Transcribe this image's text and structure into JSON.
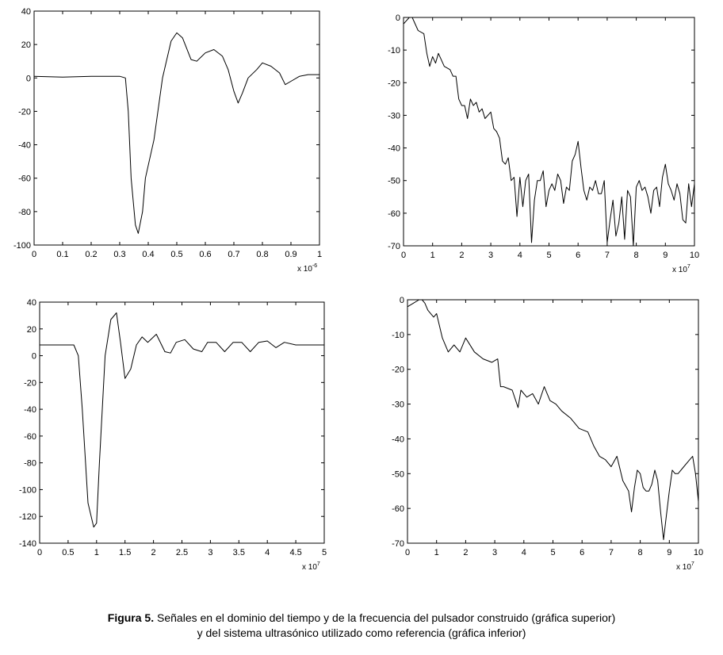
{
  "caption": {
    "label": "Figura 5.",
    "line1": " Señales en el dominio del tiempo y de la frecuencia del pulsador construido (gráfica superior)",
    "line2": "y del sistema ultrasónico utilizado como referencia (gráfica inferior)"
  },
  "chart_data": [
    {
      "id": "top-left",
      "type": "line",
      "title": "",
      "xlabel": "",
      "ylabel": "",
      "xlim": [
        0,
        1
      ],
      "ylim": [
        -100,
        40
      ],
      "xticks": [
        "0",
        "0.1",
        "0.2",
        "0.3",
        "0.4",
        "0.5",
        "0.6",
        "0.7",
        "0.8",
        "0.9",
        "1"
      ],
      "yticks": [
        "40",
        "20",
        "0",
        "-20",
        "-40",
        "-60",
        "-80",
        "-100"
      ],
      "x_multiplier": {
        "base": "x 10",
        "exp": "-6"
      },
      "grid": false,
      "series": [
        {
          "x": [
            0,
            0.1,
            0.2,
            0.3,
            0.32,
            0.33,
            0.34,
            0.355,
            0.365,
            0.38,
            0.39,
            0.42,
            0.45,
            0.48,
            0.5,
            0.52,
            0.55,
            0.57,
            0.6,
            0.63,
            0.66,
            0.68,
            0.7,
            0.715,
            0.73,
            0.75,
            0.78,
            0.8,
            0.83,
            0.86,
            0.88,
            0.9,
            0.93,
            0.96,
            1.0
          ],
          "y": [
            1,
            0.5,
            1,
            1,
            0,
            -20,
            -60,
            -88,
            -93,
            -80,
            -60,
            -37,
            0,
            22,
            27,
            24,
            11,
            10,
            15,
            17,
            13,
            5,
            -8,
            -15,
            -9,
            0,
            5,
            9,
            7,
            3,
            -4,
            -2,
            1,
            2,
            2
          ]
        }
      ]
    },
    {
      "id": "top-right",
      "type": "line",
      "title": "",
      "xlabel": "",
      "ylabel": "",
      "xlim": [
        0,
        10
      ],
      "ylim": [
        -70,
        0
      ],
      "xticks": [
        "0",
        "1",
        "2",
        "3",
        "4",
        "5",
        "6",
        "7",
        "8",
        "9",
        "10"
      ],
      "yticks": [
        "0",
        "-10",
        "-20",
        "-30",
        "-40",
        "-50",
        "-60",
        "-70"
      ],
      "x_multiplier": {
        "base": "x 10",
        "exp": "7"
      },
      "grid": false,
      "series": [
        {
          "x": [
            0,
            0.2,
            0.3,
            0.5,
            0.7,
            0.8,
            0.9,
            1.0,
            1.1,
            1.2,
            1.4,
            1.6,
            1.7,
            1.8,
            1.9,
            2.0,
            2.1,
            2.2,
            2.3,
            2.4,
            2.5,
            2.6,
            2.7,
            2.8,
            3.0,
            3.1,
            3.2,
            3.3,
            3.4,
            3.5,
            3.6,
            3.7,
            3.8,
            3.9,
            4.0,
            4.1,
            4.2,
            4.3,
            4.4,
            4.5,
            4.6,
            4.7,
            4.8,
            4.9,
            5.0,
            5.1,
            5.2,
            5.3,
            5.4,
            5.5,
            5.6,
            5.7,
            5.8,
            5.9,
            6.0,
            6.1,
            6.2,
            6.3,
            6.4,
            6.5,
            6.6,
            6.7,
            6.8,
            6.9,
            7.0,
            7.1,
            7.2,
            7.3,
            7.4,
            7.5,
            7.6,
            7.7,
            7.8,
            7.9,
            8.0,
            8.1,
            8.2,
            8.3,
            8.4,
            8.5,
            8.6,
            8.7,
            8.8,
            8.9,
            9.0,
            9.1,
            9.2,
            9.3,
            9.4,
            9.5,
            9.6,
            9.7,
            9.8,
            9.9,
            10.0
          ],
          "y": [
            -2,
            0,
            0,
            -4,
            -5,
            -11,
            -15,
            -12,
            -14,
            -11,
            -15,
            -16,
            -18,
            -18,
            -25,
            -27,
            -27,
            -31,
            -25,
            -27,
            -26,
            -29,
            -28,
            -31,
            -29,
            -34,
            -35,
            -37,
            -44,
            -45,
            -43,
            -50,
            -49,
            -61,
            -49,
            -58,
            -50,
            -48,
            -69,
            -56,
            -50,
            -50,
            -47,
            -58,
            -53,
            -51,
            -53,
            -48,
            -50,
            -57,
            -52,
            -53,
            -44,
            -42,
            -38,
            -46,
            -53,
            -56,
            -52,
            -53,
            -50,
            -54,
            -54,
            -50,
            -69,
            -62,
            -56,
            -67,
            -63,
            -55,
            -68,
            -53,
            -55,
            -70,
            -52,
            -50,
            -53,
            -52,
            -55,
            -60,
            -53,
            -52,
            -58,
            -49,
            -45,
            -51,
            -53,
            -56,
            -51,
            -54,
            -62,
            -63,
            -51,
            -58,
            -51
          ]
        }
      ]
    },
    {
      "id": "bottom-left",
      "type": "line",
      "title": "",
      "xlabel": "",
      "ylabel": "",
      "xlim": [
        0,
        5
      ],
      "ylim": [
        -140,
        40
      ],
      "xticks": [
        "0",
        "0.5",
        "1",
        "1.5",
        "2",
        "2.5",
        "3",
        "3.5",
        "4",
        "4.5",
        "5"
      ],
      "yticks": [
        "40",
        "20",
        "0",
        "-20",
        "-40",
        "-60",
        "-80",
        "-100",
        "-120",
        "-140"
      ],
      "x_multiplier": {
        "base": "x 10",
        "exp": "7"
      },
      "grid": false,
      "series": [
        {
          "x": [
            0,
            0.3,
            0.6,
            0.68,
            0.75,
            0.85,
            0.95,
            1.0,
            1.05,
            1.15,
            1.25,
            1.35,
            1.42,
            1.5,
            1.6,
            1.7,
            1.8,
            1.9,
            2.05,
            2.2,
            2.3,
            2.4,
            2.55,
            2.7,
            2.85,
            2.95,
            3.1,
            3.25,
            3.4,
            3.55,
            3.7,
            3.85,
            4.0,
            4.15,
            4.3,
            4.5,
            4.7,
            5.0
          ],
          "y": [
            8,
            8,
            8,
            0,
            -40,
            -110,
            -128,
            -125,
            -80,
            0,
            27,
            32,
            10,
            -17,
            -10,
            8,
            14,
            10,
            16,
            3,
            2,
            10,
            12,
            5,
            3,
            10,
            10,
            3,
            10,
            10,
            3,
            10,
            11,
            6,
            10,
            8,
            8,
            8
          ]
        }
      ]
    },
    {
      "id": "bottom-right",
      "type": "line",
      "title": "",
      "xlabel": "",
      "ylabel": "",
      "xlim": [
        0,
        10
      ],
      "ylim": [
        -70,
        0
      ],
      "xticks": [
        "0",
        "1",
        "2",
        "3",
        "4",
        "5",
        "6",
        "7",
        "8",
        "9",
        "10"
      ],
      "yticks": [
        "0",
        "-10",
        "-20",
        "-30",
        "-40",
        "-50",
        "-60",
        "-70"
      ],
      "x_multiplier": {
        "base": "x 10",
        "exp": "7"
      },
      "grid": false,
      "series": [
        {
          "x": [
            0,
            0.2,
            0.4,
            0.5,
            0.6,
            0.7,
            0.9,
            1.0,
            1.2,
            1.4,
            1.6,
            1.8,
            2.0,
            2.3,
            2.6,
            2.9,
            3.1,
            3.2,
            3.3,
            3.6,
            3.8,
            3.9,
            4.1,
            4.3,
            4.5,
            4.7,
            4.9,
            5.1,
            5.3,
            5.6,
            5.9,
            6.2,
            6.4,
            6.6,
            6.8,
            7.0,
            7.2,
            7.4,
            7.6,
            7.7,
            7.8,
            7.9,
            8.0,
            8.1,
            8.2,
            8.3,
            8.4,
            8.5,
            8.6,
            8.7,
            8.8,
            8.9,
            9.0,
            9.1,
            9.2,
            9.3,
            9.5,
            9.7,
            9.8,
            9.9,
            10.0
          ],
          "y": [
            -2,
            -1,
            0,
            0,
            -1,
            -3,
            -5,
            -4,
            -11,
            -15,
            -13,
            -15,
            -11,
            -15,
            -17,
            -18,
            -17,
            -25,
            -25,
            -26,
            -31,
            -26,
            -28,
            -27,
            -30,
            -25,
            -29,
            -30,
            -32,
            -34,
            -37,
            -38,
            -42,
            -45,
            -46,
            -48,
            -45,
            -52,
            -55,
            -61,
            -54,
            -49,
            -50,
            -54,
            -55,
            -55,
            -53,
            -49,
            -52,
            -61,
            -69,
            -62,
            -55,
            -49,
            -50,
            -50,
            -48,
            -46,
            -45,
            -50,
            -58
          ]
        }
      ]
    }
  ]
}
